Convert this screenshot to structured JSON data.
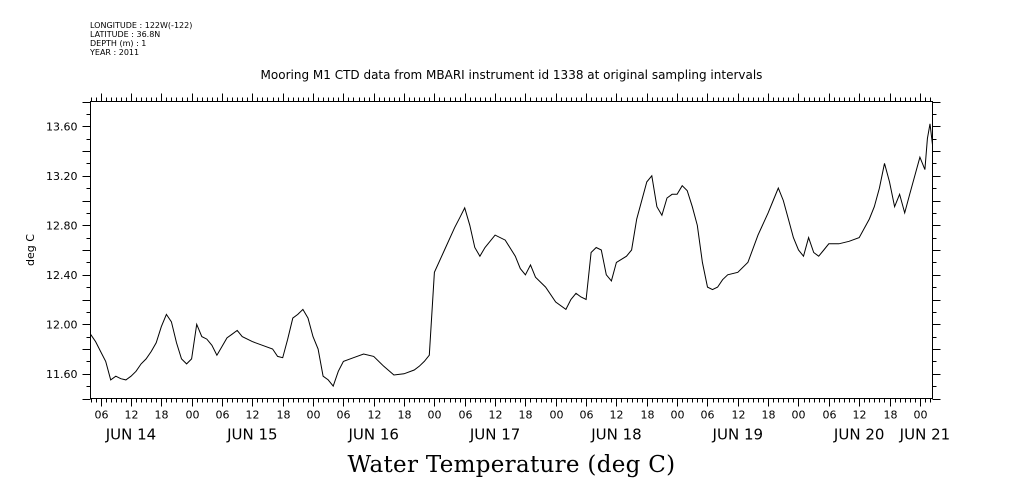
{
  "header": {
    "longitude": "LONGITUDE : 122W(-122)",
    "latitude": "LATITUDE : 36.8N",
    "depth": "DEPTH (m) : 1",
    "year": "YEAR : 2011"
  },
  "chart_data": {
    "type": "line",
    "title": "Mooring M1 CTD data from MBARI instrument id 1338 at original sampling intervals",
    "xlabel": "Water Temperature (deg C)",
    "ylabel": "deg C",
    "ylim": [
      11.4,
      13.8
    ],
    "xlim": [
      "2011-06-14T04:00",
      "2011-06-21T02:30"
    ],
    "yticks": [
      "13.60",
      "13.20",
      "12.80",
      "12.40",
      "12.00",
      "11.60"
    ],
    "xticks_hour": [
      "06",
      "12",
      "18",
      "00",
      "06",
      "12",
      "18",
      "00",
      "06",
      "12",
      "18",
      "00",
      "06",
      "12",
      "18",
      "00",
      "06",
      "12",
      "18",
      "00",
      "06",
      "12",
      "18",
      "00",
      "06",
      "12",
      "18",
      "00",
      "06",
      "12",
      "18",
      "00"
    ],
    "xticks_day": [
      "JUN 14",
      "JUN 15",
      "JUN 16",
      "JUN 17",
      "JUN 18",
      "JUN 19",
      "JUN 20",
      "JUN 21"
    ],
    "series": [
      {
        "x": [
          "2011-06-14T04:00",
          "2011-06-14T05:00",
          "2011-06-14T06:00",
          "2011-06-14T07:00",
          "2011-06-14T08:00",
          "2011-06-14T09:00",
          "2011-06-14T10:00",
          "2011-06-14T11:00",
          "2011-06-14T12:00",
          "2011-06-14T13:00",
          "2011-06-14T14:00",
          "2011-06-14T15:00",
          "2011-06-14T16:00",
          "2011-06-14T17:00",
          "2011-06-14T18:00",
          "2011-06-14T19:00",
          "2011-06-14T20:00",
          "2011-06-14T21:00",
          "2011-06-14T22:00",
          "2011-06-14T23:00",
          "2011-06-15T00:00",
          "2011-06-15T01:00",
          "2011-06-15T02:00",
          "2011-06-15T03:00",
          "2011-06-15T04:00",
          "2011-06-15T05:00",
          "2011-06-15T06:00",
          "2011-06-15T07:00",
          "2011-06-15T08:00",
          "2011-06-15T09:00",
          "2011-06-15T10:00",
          "2011-06-15T12:00",
          "2011-06-15T14:00",
          "2011-06-15T16:00",
          "2011-06-15T17:00",
          "2011-06-15T18:00",
          "2011-06-15T19:00",
          "2011-06-15T20:00",
          "2011-06-15T21:00",
          "2011-06-15T22:00",
          "2011-06-15T23:00",
          "2011-06-16T00:00",
          "2011-06-16T01:00",
          "2011-06-16T02:00",
          "2011-06-16T03:00",
          "2011-06-16T04:00",
          "2011-06-16T05:00",
          "2011-06-16T06:00",
          "2011-06-16T08:00",
          "2011-06-16T10:00",
          "2011-06-16T12:00",
          "2011-06-16T14:00",
          "2011-06-16T16:00",
          "2011-06-16T18:00",
          "2011-06-16T20:00",
          "2011-06-16T21:00",
          "2011-06-16T22:00",
          "2011-06-16T23:00",
          "2011-06-17T00:00",
          "2011-06-17T02:00",
          "2011-06-17T04:00",
          "2011-06-17T05:00",
          "2011-06-17T06:00",
          "2011-06-17T07:00",
          "2011-06-17T08:00",
          "2011-06-17T09:00",
          "2011-06-17T10:00",
          "2011-06-17T12:00",
          "2011-06-17T14:00",
          "2011-06-17T16:00",
          "2011-06-17T17:00",
          "2011-06-17T18:00",
          "2011-06-17T19:00",
          "2011-06-17T20:00",
          "2011-06-17T22:00",
          "2011-06-18T00:00",
          "2011-06-18T02:00",
          "2011-06-18T03:00",
          "2011-06-18T04:00",
          "2011-06-18T05:00",
          "2011-06-18T06:00",
          "2011-06-18T07:00",
          "2011-06-18T08:00",
          "2011-06-18T09:00",
          "2011-06-18T10:00",
          "2011-06-18T11:00",
          "2011-06-18T12:00",
          "2011-06-18T14:00",
          "2011-06-18T15:00",
          "2011-06-18T16:00",
          "2011-06-18T18:00",
          "2011-06-18T19:00",
          "2011-06-18T20:00",
          "2011-06-18T21:00",
          "2011-06-18T22:00",
          "2011-06-18T23:00",
          "2011-06-19T00:00",
          "2011-06-19T01:00",
          "2011-06-19T02:00",
          "2011-06-19T03:00",
          "2011-06-19T04:00",
          "2011-06-19T05:00",
          "2011-06-19T06:00",
          "2011-06-19T07:00",
          "2011-06-19T08:00",
          "2011-06-19T09:00",
          "2011-06-19T10:00",
          "2011-06-19T12:00",
          "2011-06-19T14:00",
          "2011-06-19T16:00",
          "2011-06-19T18:00",
          "2011-06-19T19:00",
          "2011-06-19T20:00",
          "2011-06-19T21:00",
          "2011-06-19T22:00",
          "2011-06-19T23:00",
          "2011-06-20T00:00",
          "2011-06-20T01:00",
          "2011-06-20T02:00",
          "2011-06-20T03:00",
          "2011-06-20T04:00",
          "2011-06-20T05:00",
          "2011-06-20T06:00",
          "2011-06-20T08:00",
          "2011-06-20T10:00",
          "2011-06-20T12:00",
          "2011-06-20T14:00",
          "2011-06-20T15:00",
          "2011-06-20T16:00",
          "2011-06-20T17:00",
          "2011-06-20T18:00",
          "2011-06-20T19:00",
          "2011-06-20T20:00",
          "2011-06-20T21:00",
          "2011-06-20T22:00",
          "2011-06-20T23:00",
          "2011-06-21T00:00",
          "2011-06-21T01:00",
          "2011-06-21T01:30",
          "2011-06-21T02:00",
          "2011-06-21T02:30"
        ],
        "values": [
          11.92,
          11.86,
          11.78,
          11.7,
          11.55,
          11.58,
          11.56,
          11.55,
          11.58,
          11.62,
          11.68,
          11.72,
          11.78,
          11.85,
          11.98,
          12.08,
          12.02,
          11.85,
          11.72,
          11.68,
          11.72,
          12.0,
          11.9,
          11.88,
          11.83,
          11.75,
          11.82,
          11.89,
          11.92,
          11.95,
          11.9,
          11.86,
          11.83,
          11.8,
          11.74,
          11.73,
          11.88,
          12.05,
          12.08,
          12.12,
          12.05,
          11.9,
          11.8,
          11.58,
          11.55,
          11.5,
          11.62,
          11.7,
          11.73,
          11.76,
          11.74,
          11.66,
          11.59,
          11.6,
          11.63,
          11.66,
          11.7,
          11.75,
          12.42,
          12.6,
          12.78,
          12.86,
          12.94,
          12.8,
          12.62,
          12.55,
          12.62,
          12.72,
          12.68,
          12.55,
          12.45,
          12.4,
          12.48,
          12.38,
          12.3,
          12.18,
          12.12,
          12.2,
          12.25,
          12.22,
          12.2,
          12.58,
          12.62,
          12.6,
          12.4,
          12.35,
          12.5,
          12.55,
          12.6,
          12.85,
          13.15,
          13.2,
          12.95,
          12.88,
          13.02,
          13.05,
          13.05,
          13.12,
          13.08,
          12.95,
          12.8,
          12.5,
          12.3,
          12.28,
          12.3,
          12.36,
          12.4,
          12.42,
          12.5,
          12.72,
          12.9,
          13.0,
          13.1,
          13.0,
          12.85,
          12.7,
          12.6,
          12.55,
          12.7,
          12.58,
          12.55,
          12.6,
          12.65,
          12.65,
          12.67,
          12.7,
          12.85,
          12.95,
          13.1,
          13.3,
          13.15,
          12.95,
          13.05,
          12.9,
          13.05,
          13.2,
          13.35,
          13.25,
          13.5,
          13.62,
          13.45
        ]
      }
    ],
    "axes": {
      "box": true,
      "grid": false,
      "minor_ticks": true
    }
  }
}
